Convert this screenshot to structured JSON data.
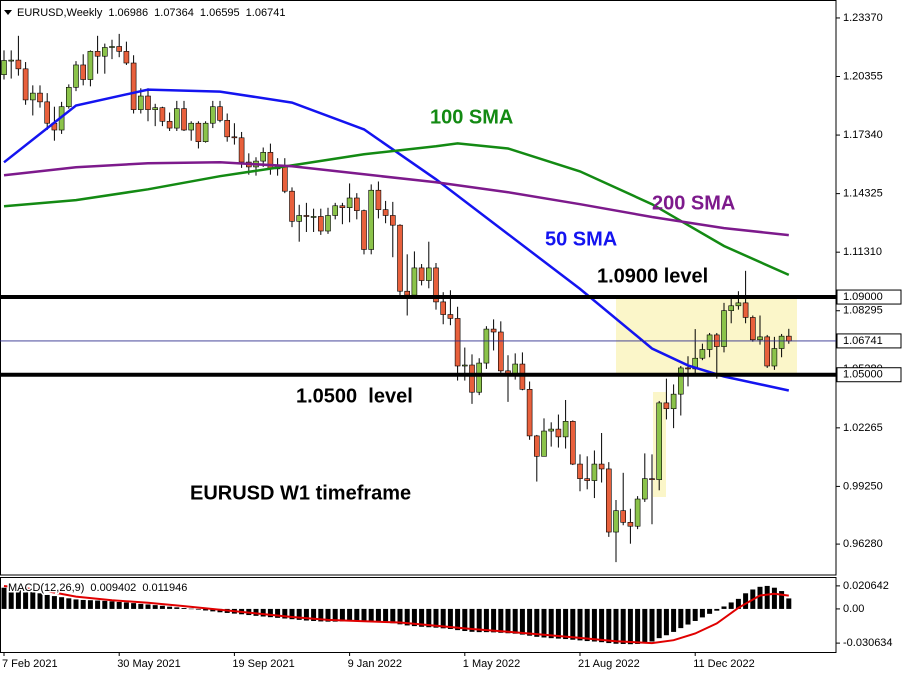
{
  "chart_data": [
    {
      "type": "candlestick",
      "symbol": "EURUSD,Weekly",
      "categories": [
        "7 Feb 2021",
        null,
        null,
        null,
        null,
        null,
        null,
        null,
        null,
        null,
        null,
        null,
        null,
        null,
        null,
        null,
        "30 May 2021",
        null,
        null,
        null,
        null,
        null,
        null,
        null,
        null,
        null,
        null,
        null,
        null,
        null,
        null,
        null,
        "19 Sep 2021",
        null,
        null,
        null,
        null,
        null,
        null,
        null,
        null,
        null,
        null,
        null,
        null,
        null,
        null,
        null,
        "9 Jan 2022",
        null,
        null,
        null,
        null,
        null,
        null,
        null,
        null,
        null,
        null,
        null,
        null,
        null,
        null,
        null,
        "1 May 2022",
        null,
        null,
        null,
        null,
        null,
        null,
        null,
        null,
        null,
        null,
        null,
        null,
        null,
        null,
        null,
        "21 Aug 2022",
        null,
        null,
        null,
        null,
        null,
        null,
        null,
        null,
        null,
        null,
        null,
        null,
        null,
        null,
        null,
        "11 Dec 2022",
        null,
        null,
        null,
        null,
        null,
        null,
        null,
        null,
        null,
        null,
        null,
        null,
        null
      ],
      "open": [
        1.2045,
        1.2118,
        1.212,
        1.2075,
        1.1915,
        1.195,
        1.1905,
        1.1795,
        1.176,
        1.188,
        1.198,
        1.2095,
        1.202,
        1.2165,
        1.214,
        1.2185,
        1.219,
        1.2165,
        1.2105,
        1.1865,
        1.1935,
        1.1865,
        1.1875,
        1.1805,
        1.177,
        1.187,
        1.176,
        1.1795,
        1.17,
        1.1795,
        1.188,
        1.181,
        1.1725,
        1.172,
        1.1595,
        1.157,
        1.16,
        1.1645,
        1.156,
        1.157,
        1.1445,
        1.129,
        1.132,
        1.1315,
        1.1315,
        1.124,
        1.132,
        1.137,
        1.136,
        1.141,
        1.1345,
        1.1145,
        1.145,
        1.135,
        1.132,
        1.127,
        1.093,
        1.091,
        1.105,
        1.0985,
        1.105,
        1.0875,
        1.081,
        1.079,
        1.0545,
        1.055,
        1.041,
        1.056,
        1.0735,
        1.072,
        1.052,
        1.0495,
        1.0555,
        1.0425,
        1.0185,
        1.008,
        1.021,
        1.022,
        1.018,
        1.026,
        1.004,
        0.9965,
        0.9955,
        1.004,
        1.0015,
        0.969,
        0.98,
        0.974,
        0.972,
        0.986,
        0.9965,
        0.996,
        1.0355,
        1.0325,
        1.04,
        1.0535,
        1.053,
        1.0585,
        1.063,
        1.0705,
        1.0645,
        1.083,
        1.0855,
        1.087,
        1.0795,
        1.068,
        1.0695,
        1.0545,
        1.0635,
        1.06986
      ],
      "high": [
        1.217,
        1.217,
        1.2245,
        1.211,
        1.199,
        1.199,
        1.195,
        1.188,
        1.1905,
        1.1995,
        1.2115,
        1.215,
        1.217,
        1.2245,
        1.2205,
        1.2225,
        1.2255,
        1.2215,
        1.2145,
        1.1975,
        1.1975,
        1.1895,
        1.188,
        1.185,
        1.191,
        1.191,
        1.1805,
        1.1805,
        1.1805,
        1.191,
        1.191,
        1.1845,
        1.1795,
        1.175,
        1.164,
        1.162,
        1.167,
        1.169,
        1.1615,
        1.1615,
        1.1465,
        1.1375,
        1.1385,
        1.1355,
        1.1355,
        1.136,
        1.1385,
        1.1385,
        1.1485,
        1.1435,
        1.135,
        1.148,
        1.1495,
        1.1395,
        1.139,
        1.1275,
        1.112,
        1.1135,
        1.107,
        1.1185,
        1.1075,
        1.0925,
        1.0935,
        1.085,
        1.064,
        1.0605,
        1.0585,
        1.075,
        1.0785,
        1.0775,
        1.06,
        1.061,
        1.0615,
        1.0465,
        1.019,
        1.0275,
        1.0255,
        1.0295,
        1.037,
        1.0265,
        1.009,
        1.008,
        1.011,
        1.02,
        1.005,
        0.9855,
        0.9995,
        0.981,
        0.9875,
        1.0095,
        1.009,
        1.0365,
        1.048,
        1.045,
        1.0545,
        1.0595,
        1.0735,
        1.066,
        1.0715,
        1.0715,
        1.087,
        1.089,
        1.093,
        1.1035,
        1.0805,
        1.0805,
        1.0705,
        1.0695,
        1.071,
        1.07364
      ],
      "low": [
        1.202,
        1.2025,
        1.204,
        1.189,
        1.1835,
        1.1875,
        1.176,
        1.1705,
        1.174,
        1.187,
        1.196,
        1.199,
        1.1985,
        1.205,
        1.205,
        1.2125,
        1.2135,
        1.2095,
        1.1845,
        1.1845,
        1.1805,
        1.178,
        1.178,
        1.1755,
        1.1755,
        1.1755,
        1.1705,
        1.1665,
        1.1695,
        1.177,
        1.18,
        1.17,
        1.1685,
        1.1565,
        1.153,
        1.1525,
        1.157,
        1.153,
        1.1525,
        1.1435,
        1.126,
        1.1185,
        1.1235,
        1.1235,
        1.122,
        1.1225,
        1.13,
        1.1275,
        1.1285,
        1.13,
        1.112,
        1.112,
        1.1305,
        1.128,
        1.1105,
        1.09,
        1.0805,
        1.09,
        1.096,
        1.0945,
        1.0835,
        1.076,
        1.0755,
        1.047,
        1.047,
        1.035,
        1.0395,
        1.053,
        1.0625,
        1.051,
        1.036,
        1.0475,
        1.042,
        1.0165,
        0.995,
        1.008,
        1.013,
        1.0125,
        1.012,
        1.0035,
        0.99,
        0.991,
        0.9865,
        0.9945,
        0.9665,
        0.9535,
        0.9725,
        0.963,
        0.9705,
        0.9845,
        0.973,
        0.9905,
        1.027,
        1.0225,
        1.029,
        1.044,
        1.0505,
        1.0575,
        1.059,
        1.048,
        1.0615,
        1.0765,
        1.0835,
        1.0765,
        1.067,
        1.0655,
        1.0535,
        1.0525,
        1.059,
        1.06595
      ],
      "close": [
        1.2118,
        1.212,
        1.2075,
        1.1915,
        1.195,
        1.1905,
        1.1795,
        1.176,
        1.188,
        1.198,
        1.2095,
        1.202,
        1.2165,
        1.214,
        1.2185,
        1.219,
        1.2165,
        1.2105,
        1.1865,
        1.1935,
        1.1865,
        1.1875,
        1.1805,
        1.177,
        1.187,
        1.176,
        1.1795,
        1.17,
        1.1795,
        1.188,
        1.181,
        1.1725,
        1.172,
        1.1595,
        1.157,
        1.16,
        1.1645,
        1.156,
        1.157,
        1.1445,
        1.129,
        1.132,
        1.1315,
        1.1315,
        1.124,
        1.132,
        1.137,
        1.136,
        1.141,
        1.1345,
        1.1145,
        1.145,
        1.135,
        1.132,
        1.127,
        1.093,
        1.091,
        1.105,
        1.0985,
        1.105,
        1.0875,
        1.081,
        1.079,
        1.0545,
        1.055,
        1.041,
        1.056,
        1.0735,
        1.072,
        1.052,
        1.0495,
        1.0555,
        1.0425,
        1.0185,
        1.008,
        1.021,
        1.022,
        1.018,
        1.026,
        1.004,
        0.9965,
        0.9955,
        1.004,
        1.0015,
        0.969,
        0.98,
        0.974,
        0.972,
        0.986,
        0.9965,
        0.996,
        1.0355,
        1.0325,
        1.04,
        1.0535,
        1.053,
        1.0585,
        1.063,
        1.0705,
        1.0645,
        1.083,
        1.0855,
        1.087,
        1.0795,
        1.068,
        1.0695,
        1.0545,
        1.0635,
        1.06986,
        1.06741
      ],
      "up_color": "#8bc34a",
      "down_color": "#e8603c",
      "ylim": [
        0.9474,
        1.2414
      ],
      "yticks": [
        {
          "value": 1.2337,
          "label": "1.23370"
        },
        1.20355,
        {
          "value": 1.1734,
          "label": "1.17340"
        },
        1.14325,
        {
          "value": 1.1131,
          "label": "1.11310"
        },
        1.08295,
        {
          "value": 1.0528,
          "label": "1.05280"
        },
        1.02265,
        {
          "value": 0.9925,
          "label": "0.99250"
        },
        {
          "value": 0.9628,
          "label": "0.96280"
        }
      ],
      "lines": [
        {
          "name": "50 SMA",
          "color": "#1414f0",
          "x": [
            0,
            10,
            20,
            30,
            40,
            50,
            60,
            70,
            80,
            90,
            95,
            100,
            109
          ],
          "values": [
            1.1594,
            1.1886,
            1.1968,
            1.1958,
            1.1901,
            1.1763,
            1.1506,
            1.1224,
            1.0942,
            1.0635,
            1.0548,
            1.0491,
            1.0419
          ]
        },
        {
          "name": "100 SMA",
          "color": "#138a13",
          "x": [
            0,
            10,
            20,
            30,
            40,
            50,
            60,
            63,
            70,
            80,
            90,
            100,
            109
          ],
          "values": [
            1.1368,
            1.1399,
            1.1455,
            1.1522,
            1.1578,
            1.1635,
            1.1676,
            1.1691,
            1.1665,
            1.1547,
            1.1378,
            1.1163,
            1.1014
          ]
        },
        {
          "name": "200 SMA",
          "color": "#7d1a8c",
          "x": [
            0,
            10,
            20,
            30,
            40,
            50,
            60,
            70,
            80,
            90,
            100,
            109
          ],
          "values": [
            1.1527,
            1.1568,
            1.1589,
            1.1594,
            1.1573,
            1.1532,
            1.1491,
            1.144,
            1.1378,
            1.1312,
            1.1255,
            1.1219
          ]
        }
      ],
      "levels": [
        {
          "value": 1.09,
          "label": "1.09000",
          "text": "1.0900 level"
        },
        {
          "value": 1.05,
          "label": "1.05000",
          "text": "1.0500  level"
        }
      ],
      "annotation": "EURUSD W1 timeframe"
    },
    {
      "type": "macd",
      "name": "MACD(12,26,9)",
      "color": "#000000",
      "values": [
        0.019,
        0.018,
        0.017,
        0.016,
        0.015,
        0.014,
        0.0125,
        0.0115,
        0.0105,
        0.0095,
        0.0085,
        0.008,
        0.0078,
        0.0075,
        0.0072,
        0.0068,
        0.0062,
        0.0058,
        0.0052,
        0.0045,
        0.004,
        0.0034,
        0.0028,
        0.002,
        0.0014,
        0.0008,
        0.0002,
        -0.0006,
        -0.0014,
        -0.0022,
        -0.003,
        -0.0036,
        -0.0042,
        -0.0048,
        -0.0055,
        -0.0062,
        -0.0068,
        -0.0074,
        -0.008,
        -0.0086,
        -0.0092,
        -0.0098,
        -0.0104,
        -0.0108,
        -0.0112,
        -0.0114,
        -0.0114,
        -0.0112,
        -0.011,
        -0.011,
        -0.0112,
        -0.0114,
        -0.0118,
        -0.0122,
        -0.0128,
        -0.0138,
        -0.0148,
        -0.0154,
        -0.016,
        -0.0164,
        -0.0168,
        -0.0174,
        -0.018,
        -0.019,
        -0.0198,
        -0.0205,
        -0.0208,
        -0.0208,
        -0.021,
        -0.0214,
        -0.0218,
        -0.0222,
        -0.023,
        -0.024,
        -0.025,
        -0.0256,
        -0.0262,
        -0.0266,
        -0.027,
        -0.0276,
        -0.0282,
        -0.0288,
        -0.0292,
        -0.0298,
        -0.0306,
        -0.0312,
        -0.0314,
        -0.0316,
        -0.0314,
        -0.0306,
        -0.0292,
        -0.0262,
        -0.0236,
        -0.0206,
        -0.0172,
        -0.014,
        -0.0108,
        -0.0076,
        -0.0044,
        -0.0016,
        0.0022,
        0.0058,
        0.009,
        0.014,
        0.0174,
        0.0198,
        0.0206,
        0.019,
        0.016,
        0.009402
      ],
      "signal": {
        "color": "#e00000",
        "x": [
          0,
          5,
          10,
          15,
          20,
          25,
          30,
          35,
          40,
          45,
          50,
          55,
          60,
          65,
          70,
          75,
          80,
          85,
          90,
          93,
          96,
          99,
          102,
          105,
          107,
          109
        ],
        "values": [
          0.0205,
          0.017,
          0.011,
          0.0078,
          0.0055,
          0.0025,
          -0.0008,
          -0.004,
          -0.0072,
          -0.0098,
          -0.011,
          -0.0122,
          -0.015,
          -0.018,
          -0.0205,
          -0.0232,
          -0.026,
          -0.029,
          -0.0306,
          -0.028,
          -0.022,
          -0.013,
          0.001,
          0.012,
          0.0135,
          0.011946
        ]
      },
      "ylim": [
        -0.0386,
        0.0277
      ],
      "yticks": [
        0.020642,
        {
          "value": 0,
          "label": "0.00"
        },
        -0.030634
      ]
    }
  ]
}
